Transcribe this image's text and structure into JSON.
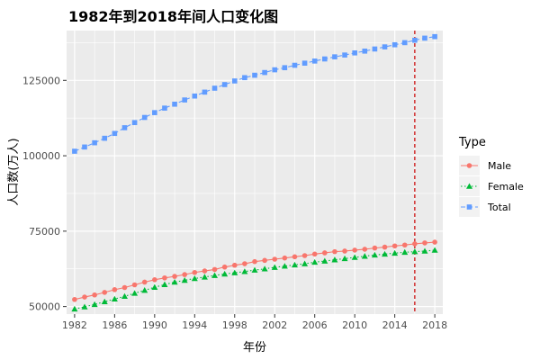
{
  "chart_data": {
    "type": "line",
    "title": "1982年到2018年间人口变化图",
    "xlabel": "年份",
    "ylabel": "人口数(万人)",
    "xlim": [
      1981.2,
      2018.8
    ],
    "ylim": [
      47500,
      141500
    ],
    "x_ticks": [
      1982,
      1986,
      1990,
      1994,
      1998,
      2002,
      2006,
      2010,
      2014,
      2018
    ],
    "y_ticks": [
      50000,
      75000,
      100000,
      125000
    ],
    "grid": true,
    "vline": 2016,
    "vline_color": "#CC0000",
    "panel_bg": "#EBEBEB",
    "legend_title": "Type",
    "legend_position": "right",
    "x": [
      1982,
      1983,
      1984,
      1985,
      1986,
      1987,
      1988,
      1989,
      1990,
      1991,
      1992,
      1993,
      1994,
      1995,
      1996,
      1997,
      1998,
      1999,
      2000,
      2001,
      2002,
      2003,
      2004,
      2005,
      2006,
      2007,
      2008,
      2009,
      2010,
      2011,
      2012,
      2013,
      2014,
      2015,
      2016,
      2017,
      2018
    ],
    "series": [
      {
        "name": "Male",
        "color": "#F8766D",
        "marker": "circle",
        "line": "solid",
        "values": [
          52350,
          53150,
          53850,
          54700,
          55600,
          56300,
          57200,
          58100,
          58900,
          59500,
          60000,
          60600,
          61300,
          61800,
          62300,
          63100,
          63700,
          64200,
          64900,
          65300,
          65700,
          66100,
          66500,
          66900,
          67400,
          67800,
          68200,
          68400,
          68700,
          69000,
          69400,
          69700,
          70100,
          70400,
          70800,
          71100,
          71350
        ]
      },
      {
        "name": "Female",
        "color": "#00BA38",
        "marker": "triangle",
        "line": "dotted",
        "values": [
          49200,
          49900,
          50700,
          51600,
          52500,
          53400,
          54400,
          55400,
          56400,
          57300,
          58100,
          58700,
          59300,
          59800,
          60300,
          60800,
          61200,
          61600,
          62100,
          62500,
          63000,
          63400,
          63800,
          64200,
          64700,
          65100,
          65500,
          65900,
          66300,
          66700,
          67100,
          67400,
          67700,
          68000,
          68200,
          68400,
          68700
        ]
      },
      {
        "name": "Total",
        "color": "#619CFF",
        "marker": "square",
        "line": "dashed",
        "values": [
          101500,
          102900,
          104300,
          105800,
          107400,
          109300,
          111000,
          112700,
          114300,
          115800,
          117100,
          118500,
          119800,
          121100,
          122400,
          123600,
          124800,
          125900,
          126700,
          127600,
          128500,
          129200,
          130000,
          130700,
          131400,
          132100,
          132800,
          133400,
          134100,
          134700,
          135400,
          136100,
          136800,
          137500,
          138300,
          139000,
          139500
        ]
      }
    ]
  }
}
